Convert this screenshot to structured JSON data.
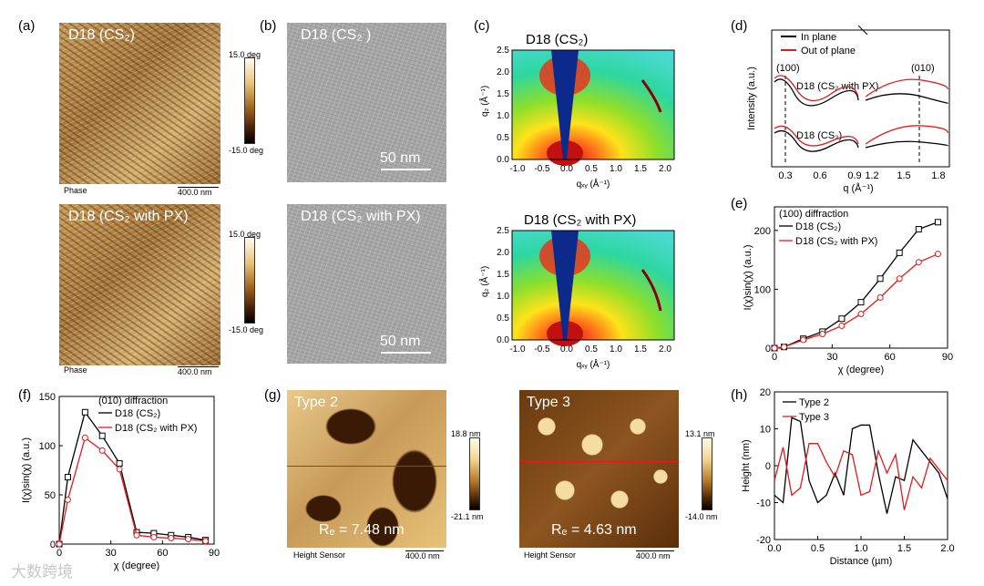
{
  "panel_labels": {
    "a": "(a)",
    "b": "(b)",
    "c": "(c)",
    "d": "(d)",
    "e": "(e)",
    "f": "(f)",
    "g": "(g)",
    "h": "(h)"
  },
  "afm": {
    "top_title": "D18 (CS₂)",
    "bottom_title": "D18 (CS₂ with PX)",
    "phase_label": "Phase",
    "scale_label": "400.0 nm",
    "cbar_max": "15.0 deg",
    "cbar_min": "-15.0 deg"
  },
  "tem": {
    "top_title": "D18 (CS₂ )",
    "bottom_title": "D18 (CS₂ with PX)",
    "scale_label": "50 nm"
  },
  "giwaxs": {
    "top_title": "D18 (CS₂)",
    "bottom_title": "D18 (CS₂ with PX)",
    "ylabel": "q₂ (Å⁻¹)",
    "xlabel": "qₓᵧ (Å⁻¹)",
    "xticks": [
      "-1.0",
      "-0.5",
      "0.0",
      "0.5",
      "1.0",
      "1.5",
      "2.0"
    ],
    "yticks": [
      "0.0",
      "0.5",
      "1.0",
      "1.5",
      "2.0",
      "2.5"
    ]
  },
  "afm_g": {
    "left_title": "Type 2",
    "right_title": "Type 3",
    "left_rq": "Rₑ = 7.48 nm",
    "right_rq": "Rₑ = 4.63 nm",
    "left_cbar_max": "18.8 nm",
    "left_cbar_min": "-21.1 nm",
    "right_cbar_max": "13.1 nm",
    "right_cbar_min": "-14.0 nm",
    "sensor_label": "Height Sensor",
    "scale_label": "400.0 nm"
  },
  "watermark": "大数跨境",
  "chart_data": [
    {
      "id": "d",
      "type": "line",
      "xlabel": "q (Å⁻¹)",
      "ylabel": "Intensity (a.u.)",
      "xticks": [
        "0.3",
        "0.6",
        "0.9",
        "1.2",
        "1.5",
        "1.8"
      ],
      "legend": [
        "In plane",
        "Out of plane"
      ],
      "annotations": [
        "(100)",
        "(010)",
        "D18 (CS₂ with PX)",
        "D18 (CS₂)"
      ],
      "series": [
        {
          "name": "In plane",
          "color": "#000000"
        },
        {
          "name": "Out of plane",
          "color": "#e41a1c"
        }
      ]
    },
    {
      "id": "e",
      "type": "line",
      "title": "(100) diffraction",
      "xlabel": "χ (degree)",
      "ylabel": "I(χ)sin(χ) (a.u.)",
      "xlim": [
        0,
        90
      ],
      "ylim": [
        0,
        240
      ],
      "xticks": [
        "0",
        "30",
        "60",
        "90"
      ],
      "yticks": [
        "0",
        "100",
        "200"
      ],
      "x": [
        0,
        5,
        15,
        25,
        35,
        45,
        55,
        65,
        75,
        85
      ],
      "series": [
        {
          "name": "D18 (CS₂)",
          "color": "#000000",
          "values": [
            0,
            2,
            16,
            28,
            50,
            78,
            118,
            162,
            202,
            214
          ]
        },
        {
          "name": "D18 (CS₂ with PX)",
          "color": "#e41a1c",
          "values": [
            0,
            2,
            14,
            24,
            38,
            58,
            86,
            118,
            146,
            160
          ]
        }
      ]
    },
    {
      "id": "f",
      "type": "line",
      "title": "(010) diffraction",
      "xlabel": "χ (degree)",
      "ylabel": "I(χ)sin(χ) (a.u.)",
      "xlim": [
        0,
        90
      ],
      "ylim": [
        0,
        150
      ],
      "xticks": [
        "0",
        "30",
        "60",
        "90"
      ],
      "yticks": [
        "0",
        "50",
        "100",
        "150"
      ],
      "x": [
        0,
        5,
        15,
        25,
        35,
        45,
        55,
        65,
        75,
        85
      ],
      "series": [
        {
          "name": "D18 (CS₂)",
          "color": "#000000",
          "values": [
            0,
            68,
            134,
            110,
            82,
            12,
            11,
            9,
            7,
            4
          ]
        },
        {
          "name": "D18 (CS₂ with PX)",
          "color": "#e41a1c",
          "values": [
            0,
            45,
            108,
            95,
            76,
            9,
            7,
            6,
            5,
            3
          ]
        }
      ]
    },
    {
      "id": "h",
      "type": "line",
      "xlabel": "Distance (µm)",
      "ylabel": "Height (nm)",
      "xlim": [
        0,
        2
      ],
      "ylim": [
        -20,
        20
      ],
      "xticks": [
        "0.0",
        "0.5",
        "1.0",
        "1.5",
        "2.0"
      ],
      "yticks": [
        "-20",
        "-10",
        "0",
        "10",
        "20"
      ],
      "x": [
        0,
        0.1,
        0.2,
        0.3,
        0.4,
        0.5,
        0.6,
        0.7,
        0.8,
        0.9,
        1.0,
        1.1,
        1.2,
        1.3,
        1.4,
        1.5,
        1.6,
        1.7,
        1.8,
        1.9,
        2.0
      ],
      "series": [
        {
          "name": "Type 2",
          "color": "#000000",
          "values": [
            -8,
            -10,
            13,
            12,
            -4,
            -10,
            -8,
            -2,
            -8,
            10,
            11,
            11,
            -2,
            -13,
            -3,
            -4,
            7,
            4,
            1,
            -2,
            -9
          ]
        },
        {
          "name": "Type 3",
          "color": "#e41a1c",
          "values": [
            -4,
            5,
            -8,
            -6,
            6,
            6,
            1,
            -3,
            4,
            3,
            -8,
            -7,
            4,
            -2,
            3,
            -12,
            -3,
            -6,
            2,
            -1,
            -4
          ]
        }
      ]
    }
  ]
}
